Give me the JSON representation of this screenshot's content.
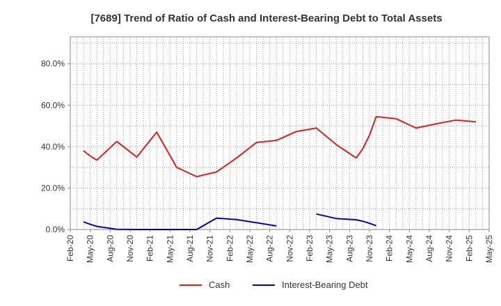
{
  "chart_data": {
    "type": "line",
    "title": "[7689]  Trend of Ratio of Cash and Interest-Bearing Debt to Total Assets",
    "xlabel": "",
    "ylabel": "",
    "ylim": [
      0,
      93
    ],
    "y_ticks": [
      {
        "value": 0,
        "label": "0.0%"
      },
      {
        "value": 20,
        "label": "20.0%"
      },
      {
        "value": 40,
        "label": "40.0%"
      },
      {
        "value": 60,
        "label": "60.0%"
      },
      {
        "value": 80,
        "label": "80.0%"
      }
    ],
    "x_range": [
      "2020-02",
      "2025-05"
    ],
    "x_ticks": [
      "Feb-20",
      "May-20",
      "Aug-20",
      "Nov-20",
      "Feb-21",
      "May-21",
      "Aug-21",
      "Nov-21",
      "Feb-22",
      "May-22",
      "Aug-22",
      "Nov-22",
      "Feb-23",
      "May-23",
      "Aug-23",
      "Nov-23",
      "Feb-24",
      "May-24",
      "Aug-24",
      "Nov-24",
      "Feb-25",
      "May-25"
    ],
    "grid": true,
    "legend_position": "bottom",
    "series": [
      {
        "name": "Cash",
        "color": "#e41a1c",
        "points": [
          {
            "x": "2020-04",
            "y": 38.0
          },
          {
            "x": "2020-05",
            "y": 35.5
          },
          {
            "x": "2020-06",
            "y": 33.5
          },
          {
            "x": "2020-09",
            "y": 42.5
          },
          {
            "x": "2020-12",
            "y": 35.0
          },
          {
            "x": "2021-03",
            "y": 47.0
          },
          {
            "x": "2021-06",
            "y": 30.0
          },
          {
            "x": "2021-09",
            "y": 25.5
          },
          {
            "x": "2021-12",
            "y": 27.8
          },
          {
            "x": "2022-03",
            "y": 34.5
          },
          {
            "x": "2022-06",
            "y": 42.0
          },
          {
            "x": "2022-09",
            "y": 43.0
          },
          {
            "x": "2022-12",
            "y": 47.3
          },
          {
            "x": "2023-03",
            "y": 49.0
          },
          {
            "x": "2023-06",
            "y": 41.0
          },
          {
            "x": "2023-09",
            "y": 34.5
          },
          {
            "x": "2023-10",
            "y": 39.0
          },
          {
            "x": "2023-11",
            "y": 45.5
          },
          {
            "x": "2023-12",
            "y": 54.5
          },
          {
            "x": "2024-03",
            "y": 53.5
          },
          {
            "x": "2024-06",
            "y": 49.0
          },
          {
            "x": "2024-09",
            "y": 51.0
          },
          {
            "x": "2024-12",
            "y": 52.8
          },
          {
            "x": "2025-03",
            "y": 52.0
          }
        ]
      },
      {
        "name": "Interest-Bearing Debt",
        "color": "#0000cc",
        "points": [
          {
            "x": "2020-04",
            "y": 3.7
          },
          {
            "x": "2020-05",
            "y": 2.5
          },
          {
            "x": "2020-06",
            "y": 1.5
          },
          {
            "x": "2020-09",
            "y": 0.1
          },
          {
            "x": "2020-12",
            "y": 0.0
          },
          {
            "x": "2021-03",
            "y": 0.0
          },
          {
            "x": "2021-06",
            "y": 0.0
          },
          {
            "x": "2021-09",
            "y": 0.0
          },
          {
            "x": "2021-12",
            "y": 5.5
          },
          {
            "x": "2022-03",
            "y": 4.8
          },
          {
            "x": "2022-06",
            "y": 3.3
          },
          {
            "x": "2022-09",
            "y": 1.7
          },
          {
            "x": "2023-03",
            "y": 7.5
          },
          {
            "x": "2023-06",
            "y": 5.3
          },
          {
            "x": "2023-09",
            "y": 4.7
          },
          {
            "x": "2023-10",
            "y": 4.0
          },
          {
            "x": "2023-11",
            "y": 3.0
          },
          {
            "x": "2023-12",
            "y": 1.8
          }
        ]
      }
    ]
  }
}
